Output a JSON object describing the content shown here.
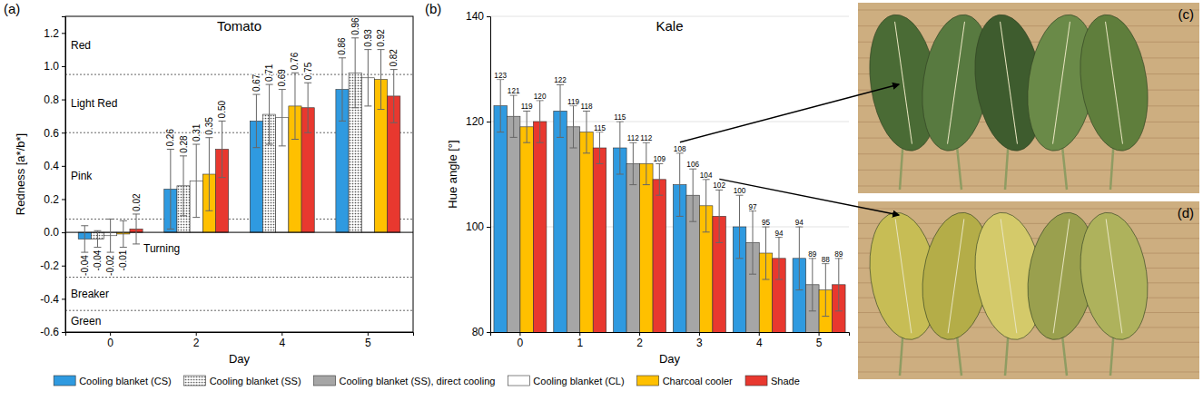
{
  "chart_data": [
    {
      "type": "bar",
      "title": "Tomato",
      "panel": "(a)",
      "x_label": "Day",
      "y_label": "Redness [a*/b*]",
      "categories": [
        "0",
        "2",
        "4",
        "5"
      ],
      "ylim": [
        -0.6,
        1.3
      ],
      "yticks": [
        -0.6,
        -0.4,
        -0.2,
        {
          "value": 0,
          "label": "0.0"
        },
        0.2,
        0.4,
        0.6,
        0.8,
        {
          "value": 1,
          "label": "1.0"
        },
        1.2
      ],
      "grid": false,
      "data_labels": true,
      "legend": "bottom",
      "zones": [
        {
          "label": "Red",
          "from": 0.95,
          "to": 1.3
        },
        {
          "label": "Light Red",
          "from": 0.6,
          "to": 0.95
        },
        {
          "label": "Pink",
          "from": 0.08,
          "to": 0.6
        },
        {
          "label": "Turning",
          "from": -0.27,
          "to": 0.08
        },
        {
          "label": "Breaker",
          "from": -0.47,
          "to": -0.27
        },
        {
          "label": "Green",
          "from": -0.6,
          "to": -0.47
        }
      ],
      "series": [
        {
          "name": "Cooling blanket (CS)",
          "color": "#2f9ae0",
          "values": [
            -0.04,
            0.26,
            0.67,
            0.86
          ],
          "errors": [
            0.08,
            0.24,
            0.16,
            0.19
          ],
          "value_labels": [
            "-0.04",
            "0.26",
            "0.67",
            "0.86"
          ]
        },
        {
          "name": "Cooling blanket (SS)",
          "color": "#555555",
          "marker": "dots",
          "values": [
            -0.04,
            0.28,
            0.71,
            0.96
          ],
          "errors": [
            0.05,
            0.18,
            0.18,
            0.21
          ],
          "value_labels": [
            "-0.04",
            "0.28",
            "0.71",
            "0.96"
          ]
        },
        {
          "name": "Cooling blanket (CL)",
          "color": "#ffffff",
          "values": [
            -0.02,
            0.31,
            0.69,
            0.93
          ],
          "errors": [
            0.1,
            0.22,
            0.17,
            0.17
          ],
          "value_labels": [
            "-0.02",
            "0.31",
            "0.69",
            "0.93"
          ]
        },
        {
          "name": "Charcoal cooler",
          "color": "#ffc000",
          "values": [
            -0.01,
            0.35,
            0.76,
            0.92
          ],
          "errors": [
            0.08,
            0.22,
            0.2,
            0.18
          ],
          "value_labels": [
            "-0.01",
            "0.35",
            "0.76",
            "0.92"
          ]
        },
        {
          "name": "Shade",
          "color": "#e8382f",
          "values": [
            0.02,
            0.5,
            0.75,
            0.82
          ],
          "errors": [
            0.09,
            0.17,
            0.15,
            0.16
          ],
          "value_labels": [
            "0.02",
            "0.50",
            "0.75",
            "0.82"
          ]
        }
      ]
    },
    {
      "type": "bar",
      "title": "Kale",
      "panel": "(b)",
      "x_label": "Day",
      "y_label": "Hue angle [°]",
      "categories": [
        "0",
        "1",
        "2",
        "3",
        "4",
        "5"
      ],
      "ylim": [
        80,
        140
      ],
      "yticks": [
        80,
        100,
        120,
        140
      ],
      "grid": true,
      "data_labels": true,
      "legend": "bottom",
      "series": [
        {
          "name": "Cooling blanket (CS)",
          "color": "#2f9ae0",
          "values": [
            123,
            122,
            115,
            108,
            100,
            94
          ],
          "errors": [
            5,
            5,
            5,
            6,
            6,
            6
          ]
        },
        {
          "name": "Cooling blanket (SS), direct cooling",
          "color": "#a6a6a6",
          "values": [
            121,
            119,
            112,
            106,
            97,
            89
          ],
          "errors": [
            4,
            4,
            4,
            5,
            6,
            5
          ]
        },
        {
          "name": "Charcoal cooler",
          "color": "#ffc000",
          "values": [
            119,
            118,
            112,
            104,
            95,
            88
          ],
          "errors": [
            3,
            4,
            4,
            5,
            5,
            5
          ]
        },
        {
          "name": "Shade",
          "color": "#e8382f",
          "values": [
            120,
            115,
            109,
            102,
            94,
            89
          ],
          "errors": [
            4,
            3,
            3,
            5,
            4,
            5
          ]
        }
      ],
      "photos": [
        {
          "label": "(c)",
          "series": "Cooling blanket (CS)",
          "category": "3"
        },
        {
          "label": "(d)",
          "series": "Shade",
          "category": "3"
        }
      ]
    }
  ]
}
